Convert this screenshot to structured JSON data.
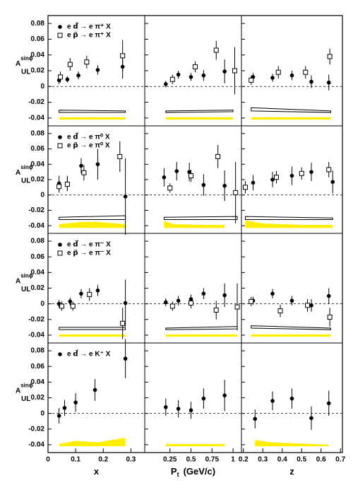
{
  "chart_data": {
    "type": "scatter",
    "ylim": [
      -0.05,
      0.09
    ],
    "yticks": [
      -0.04,
      -0.02,
      0,
      0.02,
      0.04,
      0.06,
      0.08
    ],
    "hline": 0,
    "ylabel": {
      "text": "A",
      "sup": "sinϕ",
      "sub": "UL"
    },
    "sys_color": "#ffffff",
    "band_color": "#ffee00",
    "columns": [
      {
        "xlabel": "x",
        "xlim": [
          0,
          0.35
        ],
        "xticks": [
          0,
          0.1,
          0.2,
          0.3
        ]
      },
      {
        "xlabel": "P",
        "xlabel_sub": "t",
        "xlabel_unit": "(GeV/c)",
        "xlim": [
          -0.05,
          1.1
        ],
        "xticks": [
          0.25,
          0.5,
          0.75,
          1
        ]
      },
      {
        "xlabel": "z",
        "xlim": [
          0.19,
          0.71
        ],
        "xticks": [
          0.2,
          0.3,
          0.4,
          0.5,
          0.6,
          0.7
        ]
      }
    ],
    "rows": [
      {
        "series": [
          {
            "name": "e d⃗ → e π⁺ X",
            "marker": "filled",
            "color": "#000000",
            "panels": [
              {
                "x": [
                  0.04,
                  0.07,
                  0.11,
                  0.18,
                  0.27
                ],
                "y": [
                  0.008,
                  0.009,
                  0.014,
                  0.021,
                  0.025
                ],
                "err": [
                  0.005,
                  0.004,
                  0.005,
                  0.006,
                  0.015
                ]
              },
              {
                "x": [
                  0.2,
                  0.35,
                  0.5,
                  0.65,
                  0.9
                ],
                "y": [
                  0.003,
                  0.015,
                  0.012,
                  0.014,
                  0.019
                ],
                "err": [
                  0.004,
                  0.005,
                  0.005,
                  0.007,
                  0.015
                ]
              },
              {
                "x": [
                  0.25,
                  0.35,
                  0.45,
                  0.55,
                  0.64
                ],
                "y": [
                  0.012,
                  0.011,
                  0.014,
                  0.006,
                  0.005
                ],
                "err": [
                  0.005,
                  0.005,
                  0.006,
                  0.008,
                  0.01
                ]
              }
            ]
          },
          {
            "name": "e p⃗ → e π⁺ X",
            "marker": "open",
            "color": "#000000",
            "panels": [
              {
                "x": [
                  0.045,
                  0.08,
                  0.14,
                  0.27
                ],
                "y": [
                  0.012,
                  0.028,
                  0.031,
                  0.039
                ],
                "err": [
                  0.007,
                  0.008,
                  0.008,
                  0.02
                ]
              },
              {
                "x": [
                  0.28,
                  0.55,
                  0.8,
                  1.02
                ],
                "y": [
                  0.009,
                  0.025,
                  0.046,
                  0.02
                ],
                "err": [
                  0.006,
                  0.007,
                  0.012,
                  0.03
                ]
              },
              {
                "x": [
                  0.24,
                  0.38,
                  0.52,
                  0.645
                ],
                "y": [
                  0.008,
                  0.018,
                  0.018,
                  0.038
                ],
                "err": [
                  0.006,
                  0.008,
                  0.008,
                  0.01
                ]
              }
            ]
          }
        ],
        "sys": [
          {
            "x": [
              0.04,
              0.28
            ],
            "lower": [
              -0.033,
              -0.033
            ],
            "upper": [
              -0.03,
              -0.031
            ]
          },
          {
            "x": [
              0.2,
              1.0
            ],
            "lower": [
              -0.033,
              -0.032
            ],
            "upper": [
              -0.031,
              -0.03
            ]
          },
          {
            "x": [
              0.24,
              0.65
            ],
            "lower": [
              -0.031,
              -0.033
            ],
            "upper": [
              -0.027,
              -0.031
            ]
          }
        ],
        "bands": [
          {
            "x": [
              0.04,
              0.28
            ],
            "lower": [
              -0.042,
              -0.042
            ],
            "upper": [
              -0.039,
              -0.039
            ]
          },
          {
            "x": [
              0.2,
              1.0
            ],
            "lower": [
              -0.042,
              -0.042
            ],
            "upper": [
              -0.039,
              -0.039
            ]
          },
          {
            "x": [
              0.24,
              0.65
            ],
            "lower": [
              -0.042,
              -0.042
            ],
            "upper": [
              -0.039,
              -0.039
            ]
          }
        ]
      },
      {
        "series": [
          {
            "name": "e d⃗ → e π⁰ X",
            "marker": "filled",
            "color": "#000000",
            "panels": [
              {
                "x": [
                  0.04,
                  0.07,
                  0.12,
                  0.18,
                  0.28
                ],
                "y": [
                  0.015,
                  0.015,
                  0.038,
                  0.04,
                  -0.002
                ],
                "err": [
                  0.01,
                  0.01,
                  0.01,
                  0.02,
                  0.05
                ]
              },
              {
                "x": [
                  0.18,
                  0.33,
                  0.48,
                  0.65,
                  0.9
                ],
                "y": [
                  0.023,
                  0.031,
                  0.03,
                  0.013,
                  0.012
                ],
                "err": [
                  0.012,
                  0.012,
                  0.012,
                  0.014,
                  0.02
                ]
              },
              {
                "x": [
                  0.25,
                  0.35,
                  0.45,
                  0.55,
                  0.66
                ],
                "y": [
                  0.016,
                  0.02,
                  0.025,
                  0.03,
                  0.017
                ],
                "err": [
                  0.01,
                  0.01,
                  0.012,
                  0.012,
                  0.015
                ]
              }
            ]
          },
          {
            "name": "e p⃗ → e π⁰ X",
            "marker": "open",
            "color": "#000000",
            "panels": [
              {
                "x": [
                  0.04,
                  0.07,
                  0.13,
                  0.26
                ],
                "y": [
                  0.011,
                  0.014,
                  0.029,
                  0.05
                ],
                "err": [
                  0.008,
                  0.008,
                  0.01,
                  0.02
                ]
              },
              {
                "x": [
                  0.25,
                  0.5,
                  0.82,
                  1.03
                ],
                "y": [
                  0.009,
                  0.025,
                  0.05,
                  0.003
                ],
                "err": [
                  0.006,
                  0.008,
                  0.015,
                  0.04
                ]
              },
              {
                "x": [
                  0.21,
                  0.37,
                  0.5,
                  0.64
                ],
                "y": [
                  0.01,
                  0.023,
                  0.028,
                  0.033
                ],
                "err": [
                  0.008,
                  0.008,
                  0.008,
                  0.01
                ]
              }
            ]
          }
        ],
        "sys": [
          {
            "x": [
              0.04,
              0.28
            ],
            "lower": [
              -0.032,
              -0.032
            ],
            "upper": [
              -0.029,
              -0.027
            ]
          },
          {
            "x": [
              0.18,
              1.05
            ],
            "lower": [
              -0.032,
              -0.032
            ],
            "upper": [
              -0.029,
              -0.028
            ]
          },
          {
            "x": [
              0.21,
              0.66
            ],
            "lower": [
              -0.032,
              -0.032
            ],
            "upper": [
              -0.028,
              -0.03
            ]
          }
        ],
        "bands": [
          {
            "x": [
              0.04,
              0.12,
              0.18,
              0.28
            ],
            "lower": [
              -0.043,
              -0.043,
              -0.043,
              -0.043
            ],
            "upper": [
              -0.038,
              -0.035,
              -0.035,
              -0.038
            ]
          },
          {
            "x": [
              0.18,
              0.3,
              0.65,
              0.9
            ],
            "lower": [
              -0.043,
              -0.043,
              -0.043,
              -0.043
            ],
            "upper": [
              -0.034,
              -0.038,
              -0.039,
              -0.039
            ]
          },
          {
            "x": [
              0.21,
              0.3,
              0.5,
              0.66
            ],
            "lower": [
              -0.043,
              -0.043,
              -0.043,
              -0.043
            ],
            "upper": [
              -0.033,
              -0.037,
              -0.039,
              -0.039
            ]
          }
        ]
      },
      {
        "series": [
          {
            "name": "e d⃗ → e π⁻ X",
            "marker": "filled",
            "color": "#000000",
            "panels": [
              {
                "x": [
                  0.04,
                  0.08,
                  0.12,
                  0.18,
                  0.28
                ],
                "y": [
                  0,
                  0.003,
                  0.013,
                  0.017,
                  0.001
                ],
                "err": [
                  0.005,
                  0.005,
                  0.006,
                  0.007,
                  0.03
                ]
              },
              {
                "x": [
                  0.2,
                  0.35,
                  0.5,
                  0.65,
                  0.9
                ],
                "y": [
                  0.002,
                  0.004,
                  0.006,
                  0.013,
                  0.011
                ],
                "err": [
                  0.005,
                  0.006,
                  0.006,
                  0.007,
                  0.015
                ]
              },
              {
                "x": [
                  0.25,
                  0.35,
                  0.45,
                  0.55,
                  0.64
                ],
                "y": [
                  0.004,
                  0.013,
                  0.004,
                  -0.002,
                  0.01
                ],
                "err": [
                  0.005,
                  0.006,
                  0.006,
                  0.008,
                  0.01
                ]
              }
            ]
          },
          {
            "name": "e p⃗ → e π⁻ X",
            "marker": "open",
            "color": "#000000",
            "panels": [
              {
                "x": [
                  0.05,
                  0.09,
                  0.15,
                  0.27
                ],
                "y": [
                  -0.003,
                  -0.003,
                  0.012,
                  -0.025
                ],
                "err": [
                  0.006,
                  0.006,
                  0.008,
                  0.02
                ]
              },
              {
                "x": [
                  0.28,
                  0.5,
                  0.8,
                  1.05
                ],
                "y": [
                  -0.003,
                  0.001,
                  -0.008,
                  -0.004
                ],
                "err": [
                  0.006,
                  0.007,
                  0.012,
                  0.03
                ]
              },
              {
                "x": [
                  0.24,
                  0.39,
                  0.53,
                  0.645
                ],
                "y": [
                  0.003,
                  -0.009,
                  -0.002,
                  -0.017
                ],
                "err": [
                  0.006,
                  0.008,
                  0.008,
                  0.012
                ]
              }
            ]
          }
        ],
        "sys": [
          {
            "x": [
              0.04,
              0.28
            ],
            "lower": [
              -0.033,
              -0.033
            ],
            "upper": [
              -0.03,
              -0.03
            ]
          },
          {
            "x": [
              0.2,
              1.05
            ],
            "lower": [
              -0.033,
              -0.032
            ],
            "upper": [
              -0.031,
              -0.029
            ]
          },
          {
            "x": [
              0.24,
              0.65
            ],
            "lower": [
              -0.031,
              -0.033
            ],
            "upper": [
              -0.028,
              -0.031
            ]
          }
        ],
        "bands": [
          {
            "x": [
              0.04,
              0.28
            ],
            "lower": [
              -0.042,
              -0.042
            ],
            "upper": [
              -0.039,
              -0.039
            ]
          },
          {
            "x": [
              0.2,
              1.05
            ],
            "lower": [
              -0.042,
              -0.042
            ],
            "upper": [
              -0.039,
              -0.039
            ]
          },
          {
            "x": [
              0.24,
              0.65
            ],
            "lower": [
              -0.042,
              -0.042
            ],
            "upper": [
              -0.039,
              -0.039
            ]
          }
        ]
      },
      {
        "series": [
          {
            "name": "e d⃗ → e K⁺ X",
            "marker": "filled",
            "color": "#000000",
            "panels": [
              {
                "x": [
                  0.04,
                  0.06,
                  0.1,
                  0.17,
                  0.28
                ],
                "y": [
                  -0.003,
                  0.007,
                  0.014,
                  0.03,
                  0.07
                ],
                "err": [
                  0.01,
                  0.01,
                  0.012,
                  0.014,
                  0.025
                ]
              },
              {
                "x": [
                  0.2,
                  0.35,
                  0.5,
                  0.65,
                  0.9
                ],
                "y": [
                  0.008,
                  0.006,
                  0.004,
                  0.019,
                  0.023
                ],
                "err": [
                  0.011,
                  0.011,
                  0.011,
                  0.013,
                  0.02
                ]
              },
              {
                "x": [
                  0.26,
                  0.35,
                  0.45,
                  0.55,
                  0.64
                ],
                "y": [
                  -0.007,
                  0.016,
                  0.019,
                  -0.006,
                  0.013
                ],
                "err": [
                  0.012,
                  0.012,
                  0.013,
                  0.015,
                  0.016
                ]
              }
            ]
          }
        ],
        "sys": [
          null,
          null,
          null
        ],
        "bands": [
          {
            "x": [
              0.04,
              0.1,
              0.18,
              0.28
            ],
            "lower": [
              -0.042,
              -0.042,
              -0.042,
              -0.042
            ],
            "upper": [
              -0.039,
              -0.035,
              -0.037,
              -0.031
            ]
          },
          {
            "x": [
              0.2,
              0.9
            ],
            "lower": [
              -0.042,
              -0.042
            ],
            "upper": [
              -0.039,
              -0.039
            ]
          },
          {
            "x": [
              0.26,
              0.35,
              0.64
            ],
            "lower": [
              -0.042,
              -0.042,
              -0.042
            ],
            "upper": [
              -0.034,
              -0.037,
              -0.04
            ]
          }
        ]
      }
    ]
  }
}
